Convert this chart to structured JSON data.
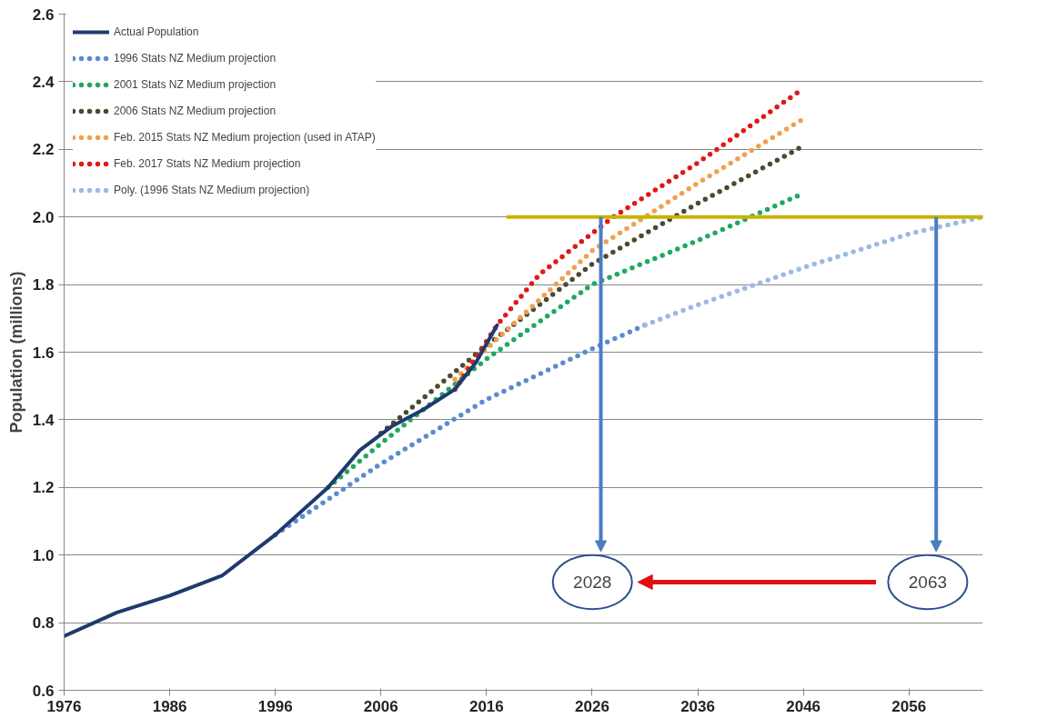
{
  "chart_data": {
    "type": "line",
    "ylabel": "Population (millions)",
    "xlim": [
      1976,
      2063
    ],
    "xticks": [
      1976,
      1986,
      1996,
      2006,
      2016,
      2026,
      2036,
      2046,
      2056
    ],
    "ylim": [
      0.6,
      2.6
    ],
    "yticks": [
      0.6,
      0.8,
      {
        "value": 1,
        "label": "1.0"
      },
      1.2,
      1.4,
      1.6,
      1.8,
      {
        "value": 2,
        "label": "2.0"
      },
      2.2,
      2.4,
      2.6
    ],
    "grid": "y",
    "legend": "top left",
    "series": [
      {
        "name": "1996 Stats NZ Medium projection",
        "color": "#5b8bd0",
        "line_style": "dotted",
        "x": [
          1996,
          2006,
          2016,
          2026,
          2031
        ],
        "values": [
          1.06,
          1.27,
          1.46,
          1.61,
          1.68
        ]
      },
      {
        "name": "2001 Stats NZ Medium projection",
        "color": "#1fa862",
        "line_style": "dotted",
        "x": [
          2001,
          2006,
          2016,
          2026,
          2036,
          2041,
          2046
        ],
        "values": [
          1.2,
          1.33,
          1.58,
          1.8,
          1.93,
          2.0,
          2.07
        ]
      },
      {
        "name": "2006 Stats NZ Medium projection",
        "color": "#4a4a30",
        "line_style": "dotted",
        "x": [
          2006,
          2016,
          2026,
          2036,
          2046
        ],
        "values": [
          1.36,
          1.62,
          1.86,
          2.04,
          2.21
        ]
      },
      {
        "name": "Feb. 2015 Stats NZ Medium projection (used in ATAP)",
        "color": "#f0a050",
        "line_style": "dotted",
        "x": [
          2013,
          2016,
          2026,
          2036,
          2046
        ],
        "values": [
          1.52,
          1.61,
          1.9,
          2.1,
          2.29
        ]
      },
      {
        "name": "Feb. 2017 Stats NZ Medium projection",
        "color": "#e01818",
        "line_style": "dotted",
        "x": [
          2013,
          2017,
          2021,
          2028,
          2036,
          2046
        ],
        "values": [
          1.49,
          1.68,
          1.83,
          2.0,
          2.16,
          2.38
        ]
      },
      {
        "name": "Poly. (1996 Stats NZ Medium projection)",
        "color": "#9db9e3",
        "line_style": "dotted",
        "x": [
          2031,
          2036,
          2046,
          2056,
          2063
        ],
        "values": [
          1.68,
          1.74,
          1.85,
          1.95,
          2.0
        ]
      },
      {
        "name": "Actual Population",
        "color": "#1f3a6e",
        "line_style": "solid",
        "x": [
          1976,
          1981,
          1986,
          1991,
          1996,
          2001,
          2004,
          2007,
          2010,
          2013,
          2015,
          2017
        ],
        "values": [
          0.76,
          0.83,
          0.88,
          0.94,
          1.06,
          1.2,
          1.31,
          1.38,
          1.43,
          1.49,
          1.57,
          1.68
        ]
      },
      {
        "color": "#c8b400",
        "line_style": "solid",
        "x": [
          2018,
          2063
        ],
        "values": [
          2.0,
          2.0
        ]
      }
    ],
    "annotations": [
      "2028",
      "2063"
    ]
  }
}
